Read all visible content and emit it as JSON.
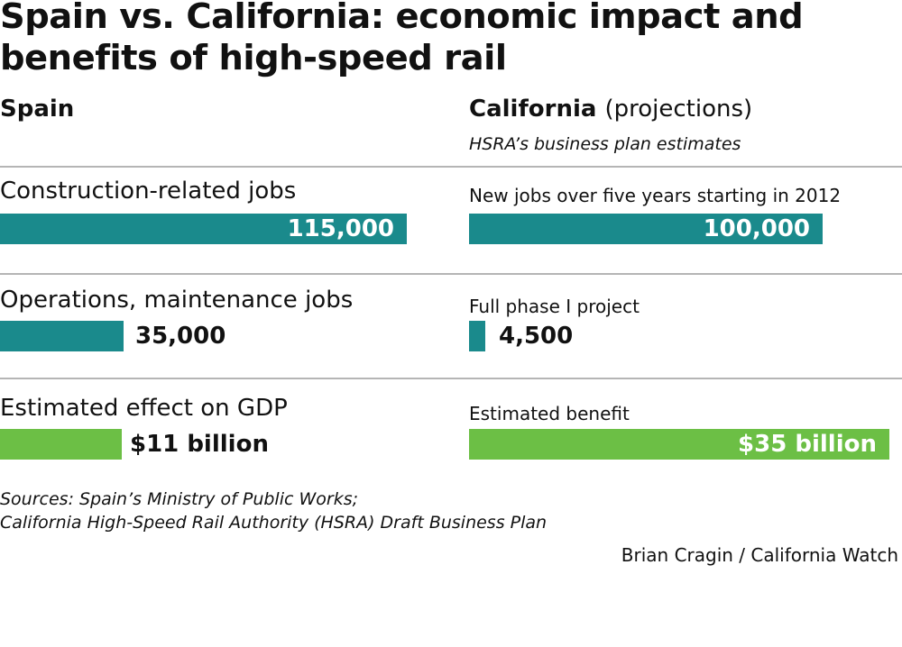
{
  "chart_data": {
    "type": "bar",
    "title": "Spain vs. California: economic impact and benefits of high-speed rail",
    "colors": {
      "jobs": "#1a8a8c",
      "gdp": "#6cbf45"
    },
    "columns": {
      "spain": {
        "heading": "Spain"
      },
      "california": {
        "heading": "California",
        "subheading": "(projections)",
        "note": "HSRA’s business plan estimates"
      }
    },
    "rows": [
      {
        "spain": {
          "label": "Construction-related jobs",
          "value": 115000,
          "value_label": "115,000"
        },
        "california": {
          "label": "New jobs over five years starting in 2012",
          "value": 100000,
          "value_label": "100,000"
        }
      },
      {
        "spain": {
          "label": "Operations, maintenance jobs",
          "value": 35000,
          "value_label": "35,000"
        },
        "california": {
          "label": "Full phase I project",
          "value": 4500,
          "value_label": "4,500"
        }
      },
      {
        "spain": {
          "label": "Estimated effect on GDP",
          "value": 11,
          "value_label": "$11 billion"
        },
        "california": {
          "label": "Estimated benefit",
          "value": 35,
          "value_label": "$35 billion"
        }
      }
    ],
    "source_lines": [
      "Sources: Spain’s Ministry of Public Works;",
      "California High-Speed Rail Authority (HSRA) Draft Business Plan"
    ],
    "credit": "Brian Cragin / California Watch"
  }
}
